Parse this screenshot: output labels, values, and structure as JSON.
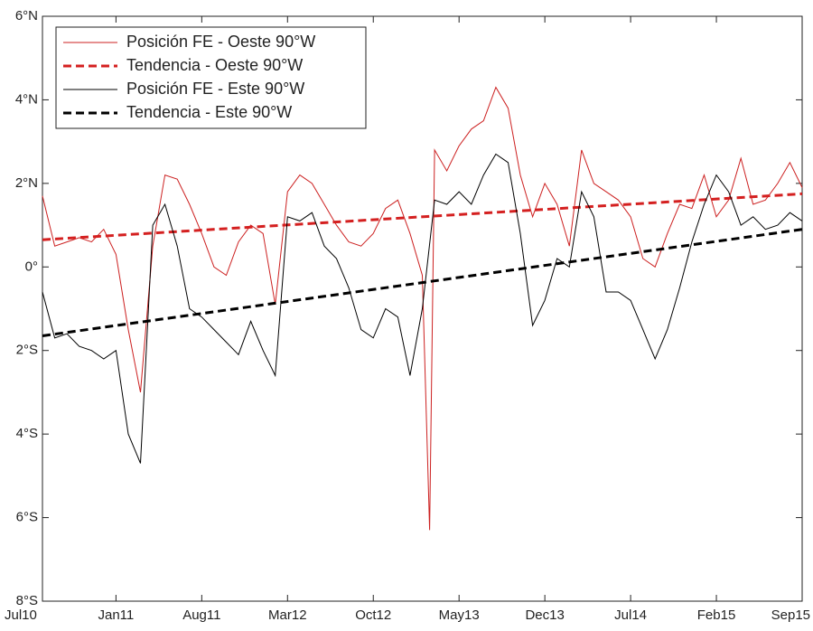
{
  "chart_data": {
    "type": "line",
    "xlim": [
      0,
      62
    ],
    "xticks": [
      {
        "value": 0,
        "label": "Jul10"
      },
      {
        "value": 6,
        "label": "Jan11"
      },
      {
        "value": 13,
        "label": "Aug11"
      },
      {
        "value": 20,
        "label": "Mar12"
      },
      {
        "value": 27,
        "label": "Oct12"
      },
      {
        "value": 34,
        "label": "May13"
      },
      {
        "value": 41,
        "label": "Dec13"
      },
      {
        "value": 48,
        "label": "Jul14"
      },
      {
        "value": 55,
        "label": "Feb15"
      },
      {
        "value": 62,
        "label": "Sep15"
      }
    ],
    "ylim": [
      -8,
      6
    ],
    "yticks": [
      {
        "value": 6,
        "label": "6°N"
      },
      {
        "value": 4,
        "label": "4°N"
      },
      {
        "value": 2,
        "label": "2°N"
      },
      {
        "value": 0,
        "label": "0°"
      },
      {
        "value": -2,
        "label": "2°S"
      },
      {
        "value": -4,
        "label": "4°S"
      },
      {
        "value": -6,
        "label": "6°S"
      },
      {
        "value": -8,
        "label": "8°S"
      }
    ],
    "legend": "upper left",
    "series": [
      {
        "name": "Posición FE - Oeste 90°W",
        "color": "#cc2020",
        "linestyle": "solid",
        "x": [
          0,
          1,
          2,
          3,
          4,
          5,
          6,
          7,
          8,
          9,
          10,
          11,
          12,
          13,
          14,
          15,
          16,
          17,
          18,
          19,
          20,
          21,
          22,
          23,
          24,
          25,
          26,
          27,
          28,
          29,
          30,
          31,
          31.6,
          32,
          33,
          34,
          35,
          36,
          37,
          38,
          39,
          40,
          41,
          42,
          43,
          44,
          45,
          46,
          47,
          48,
          49,
          50,
          51,
          52,
          53,
          54,
          55,
          56,
          57,
          58,
          59,
          60,
          61,
          62
        ],
        "values": [
          1.7,
          0.5,
          0.6,
          0.7,
          0.6,
          0.9,
          0.3,
          -1.5,
          -3.0,
          0.5,
          2.2,
          2.1,
          1.5,
          0.8,
          0.0,
          -0.2,
          0.6,
          1.0,
          0.8,
          -0.9,
          1.8,
          2.2,
          2.0,
          1.5,
          1.0,
          0.6,
          0.5,
          0.8,
          1.4,
          1.6,
          0.8,
          -0.2,
          -6.3,
          2.8,
          2.3,
          2.9,
          3.3,
          3.5,
          4.3,
          3.8,
          2.2,
          1.2,
          2.0,
          1.5,
          0.5,
          2.8,
          2.0,
          1.8,
          1.6,
          1.2,
          0.2,
          0.0,
          0.8,
          1.5,
          1.4,
          2.2,
          1.2,
          1.6,
          2.6,
          1.5,
          1.6,
          2.0,
          2.5,
          1.9
        ]
      },
      {
        "name": "Tendencia - Oeste 90°W",
        "color": "#d42020",
        "linestyle": "dashed",
        "x": [
          0,
          62
        ],
        "values": [
          0.65,
          1.75
        ]
      },
      {
        "name": "Posición FE - Este 90°W",
        "color": "#000000",
        "linestyle": "solid",
        "x": [
          0,
          1,
          2,
          3,
          4,
          5,
          6,
          7,
          8,
          9,
          10,
          11,
          12,
          13,
          14,
          15,
          16,
          17,
          18,
          19,
          20,
          21,
          22,
          23,
          24,
          25,
          26,
          27,
          28,
          29,
          30,
          31,
          32,
          33,
          34,
          35,
          36,
          37,
          38,
          39,
          40,
          41,
          42,
          43,
          44,
          45,
          46,
          47,
          48,
          49,
          50,
          51,
          52,
          53,
          54,
          55,
          56,
          57,
          58,
          59,
          60,
          61,
          62
        ],
        "values": [
          -0.6,
          -1.7,
          -1.6,
          -1.9,
          -2.0,
          -2.2,
          -2.0,
          -4.0,
          -4.7,
          1.0,
          1.5,
          0.5,
          -1.0,
          -1.2,
          -1.5,
          -1.8,
          -2.1,
          -1.3,
          -2.0,
          -2.6,
          1.2,
          1.1,
          1.3,
          0.5,
          0.2,
          -0.5,
          -1.5,
          -1.7,
          -1.0,
          -1.2,
          -2.6,
          -1.0,
          1.6,
          1.5,
          1.8,
          1.5,
          2.2,
          2.7,
          2.5,
          0.8,
          -1.4,
          -0.8,
          0.2,
          0.0,
          1.8,
          1.2,
          -0.6,
          -0.6,
          -0.8,
          -1.5,
          -2.2,
          -1.5,
          -0.5,
          0.6,
          1.5,
          2.2,
          1.8,
          1.0,
          1.2,
          0.9,
          1.0,
          1.3,
          1.1
        ]
      },
      {
        "name": "Tendencia - Este 90°W",
        "color": "#000000",
        "linestyle": "dashed",
        "x": [
          0,
          62
        ],
        "values": [
          -1.65,
          0.9
        ]
      }
    ]
  }
}
